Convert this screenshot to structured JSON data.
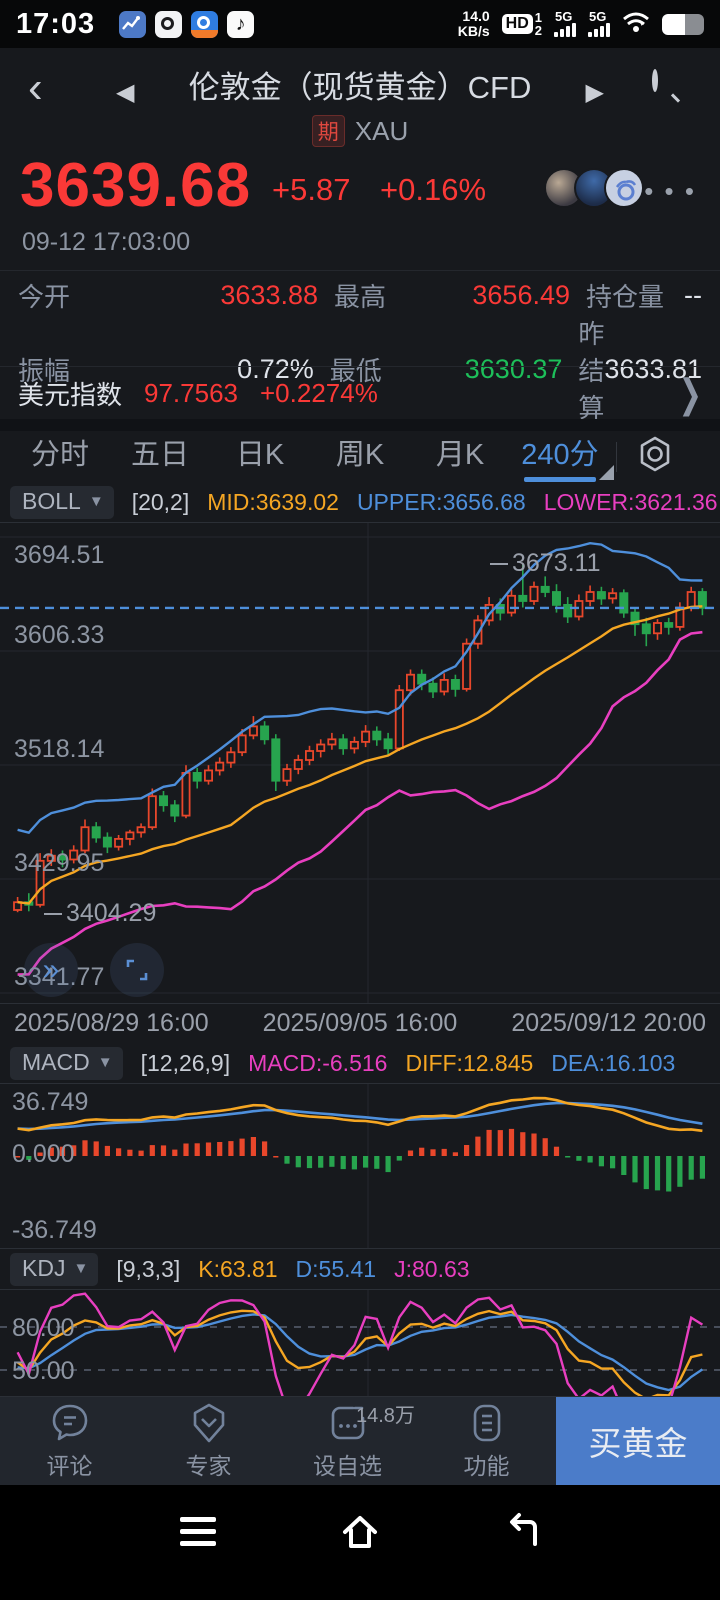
{
  "colors": {
    "up": "#e8472b",
    "down": "#27a44e",
    "boll_mid": "#f5a623",
    "boll_upper": "#4e8fdb",
    "boll_lower": "#e83fc0",
    "macd_diff": "#f5a623",
    "macd_dea": "#4e8fdb",
    "kdj_k": "#f5a623",
    "kdj_d": "#4e8fdb",
    "kdj_j": "#e83fc0",
    "grid": "#24282e",
    "dashed_price": "#4e8fdb",
    "price_red": "#fa3937",
    "green": "#1dbf5a",
    "accent_blue": "#4e8fdb"
  },
  "icons": {
    "back_chevron": "‹",
    "prev": "◀",
    "next": "▶",
    "more": "• • •",
    "chevron_right": "❯",
    "dropdown": "▼",
    "fast_forward": "»"
  },
  "status_bar": {
    "time": "17:03",
    "speed_top": "14.0",
    "speed_bottom": "KB/s",
    "hd": "HD",
    "sim1": "1",
    "sim2": "2",
    "net1": "5G",
    "net2": "5G",
    "app4_glyph": "♪"
  },
  "title_bar": {
    "title": "伦敦金（现货黄金）CFD",
    "badge": "期",
    "symbol": "XAU"
  },
  "quote": {
    "price": "3639.68",
    "change": "+5.87",
    "change_pct": "+0.16%",
    "timestamp": "09-12 17:03:00"
  },
  "stats": {
    "open_label": "今开",
    "open": "3633.88",
    "high_label": "最高",
    "high": "3656.49",
    "oi_label": "持仓量",
    "oi": "--",
    "amp_label": "振幅",
    "amp": "0.72%",
    "low_label": "最低",
    "low": "3630.37",
    "settle_label": "昨结算",
    "settle": "3633.81"
  },
  "usd_index": {
    "label": "美元指数",
    "value": "97.7563",
    "change": "+0.2274%"
  },
  "tabs": [
    {
      "label": "分时"
    },
    {
      "label": "五日"
    },
    {
      "label": "日K"
    },
    {
      "label": "周K"
    },
    {
      "label": "月K"
    },
    {
      "label": "240分"
    }
  ],
  "indicators": {
    "boll": {
      "name": "BOLL",
      "params": "[20,2]",
      "mid": "MID:3639.02",
      "upper": "UPPER:3656.68",
      "lower": "LOWER:3621.36"
    },
    "macd": {
      "name": "MACD",
      "params": "[12,26,9]",
      "macd": "MACD:-6.516",
      "diff": "DIFF:12.845",
      "dea": "DEA:16.103"
    },
    "kdj": {
      "name": "KDJ",
      "params": "[9,3,3]",
      "k": "K:63.81",
      "d": "D:55.41",
      "j": "J:80.63"
    }
  },
  "chart_data": {
    "type": "candlestick",
    "period": "240分",
    "y_axis_labels": [
      "3694.51",
      "3606.33",
      "3518.14",
      "3429.95",
      "3341.77"
    ],
    "x_axis_labels": [
      "2025/08/29 16:00",
      "2025/09/05 16:00",
      "2025/09/12 20:00"
    ],
    "current_price": 3639.68,
    "annotations": {
      "high": "3673.11",
      "low": "3404.29"
    },
    "boll_readout": {
      "mid": 3639.02,
      "upper": 3656.68,
      "lower": 3621.36
    },
    "macd_axis": [
      "36.749",
      "0.000",
      "-36.749"
    ],
    "macd_readout": {
      "macd": -6.516,
      "diff": 12.845,
      "dea": 16.103
    },
    "kdj_axis": [
      "80.00",
      "50.00"
    ],
    "kdj_readout": {
      "k": 63.81,
      "d": 55.41,
      "j": 80.63
    },
    "candles_ohlc": [
      [
        3406,
        3416,
        3404.29,
        3412
      ],
      [
        3412,
        3419,
        3405,
        3410
      ],
      [
        3410,
        3450,
        3408,
        3444
      ],
      [
        3444,
        3453,
        3440,
        3448
      ],
      [
        3448,
        3452,
        3439,
        3445
      ],
      [
        3445,
        3456,
        3442,
        3452
      ],
      [
        3452,
        3476,
        3450,
        3470
      ],
      [
        3470,
        3474,
        3458,
        3462
      ],
      [
        3462,
        3466,
        3450,
        3455
      ],
      [
        3455,
        3464,
        3452,
        3461
      ],
      [
        3461,
        3468,
        3456,
        3466
      ],
      [
        3466,
        3473,
        3462,
        3470
      ],
      [
        3470,
        3500,
        3468,
        3494
      ],
      [
        3494,
        3498,
        3482,
        3487
      ],
      [
        3487,
        3491,
        3474,
        3479
      ],
      [
        3479,
        3518,
        3477,
        3512
      ],
      [
        3512,
        3516,
        3500,
        3506
      ],
      [
        3506,
        3518,
        3503,
        3514
      ],
      [
        3514,
        3524,
        3510,
        3520
      ],
      [
        3520,
        3532,
        3516,
        3528
      ],
      [
        3528,
        3546,
        3525,
        3541
      ],
      [
        3541,
        3556,
        3538,
        3548
      ],
      [
        3548,
        3552,
        3534,
        3538
      ],
      [
        3538,
        3542,
        3498,
        3506
      ],
      [
        3506,
        3519,
        3502,
        3515
      ],
      [
        3515,
        3526,
        3511,
        3522
      ],
      [
        3522,
        3533,
        3518,
        3529
      ],
      [
        3529,
        3538,
        3524,
        3534
      ],
      [
        3534,
        3543,
        3530,
        3538
      ],
      [
        3538,
        3542,
        3526,
        3531
      ],
      [
        3531,
        3540,
        3527,
        3536
      ],
      [
        3536,
        3549,
        3532,
        3544
      ],
      [
        3544,
        3548,
        3533,
        3538
      ],
      [
        3538,
        3543,
        3526,
        3531
      ],
      [
        3531,
        3580,
        3529,
        3576
      ],
      [
        3576,
        3592,
        3572,
        3588
      ],
      [
        3588,
        3592,
        3576,
        3581
      ],
      [
        3581,
        3586,
        3570,
        3575
      ],
      [
        3575,
        3589,
        3572,
        3584
      ],
      [
        3584,
        3588,
        3571,
        3577
      ],
      [
        3577,
        3616,
        3575,
        3612
      ],
      [
        3612,
        3634,
        3608,
        3630
      ],
      [
        3630,
        3648,
        3626,
        3642
      ],
      [
        3642,
        3647,
        3630,
        3636
      ],
      [
        3636,
        3654,
        3633,
        3649
      ],
      [
        3649,
        3673.11,
        3640,
        3645
      ],
      [
        3645,
        3660,
        3642,
        3656
      ],
      [
        3656,
        3664,
        3648,
        3652
      ],
      [
        3652,
        3658,
        3636,
        3642
      ],
      [
        3642,
        3648,
        3628,
        3633
      ],
      [
        3633,
        3650,
        3630,
        3645
      ],
      [
        3645,
        3657,
        3641,
        3652
      ],
      [
        3652,
        3656,
        3642,
        3647
      ],
      [
        3647,
        3655,
        3643,
        3651
      ],
      [
        3651,
        3654,
        3632,
        3636
      ],
      [
        3636,
        3640,
        3618,
        3627
      ],
      [
        3627,
        3632,
        3610,
        3620
      ],
      [
        3620,
        3631,
        3615,
        3628
      ],
      [
        3628,
        3632,
        3619,
        3625
      ],
      [
        3625,
        3644,
        3622,
        3640
      ],
      [
        3640,
        3656,
        3637,
        3652
      ],
      [
        3652,
        3655,
        3634,
        3639.68
      ]
    ]
  },
  "bottom_bar": {
    "items": [
      {
        "label": "评论"
      },
      {
        "label": "专家"
      },
      {
        "label": "设自选",
        "badge": "14.8万"
      },
      {
        "label": "功能"
      }
    ],
    "buy": "买黄金"
  }
}
